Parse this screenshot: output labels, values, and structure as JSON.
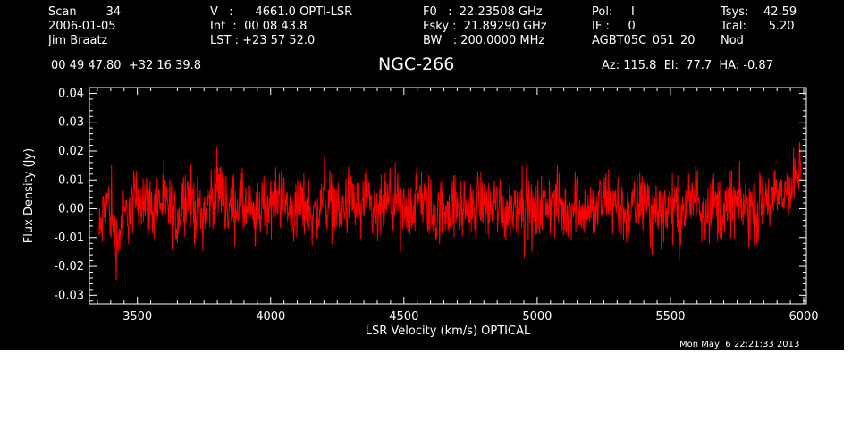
{
  "header": {
    "col1": [
      "Scan        34",
      "2006-01-05",
      "Jim Braatz"
    ],
    "col2": [
      "V   :      4661.0 OPTI-LSR",
      "Int  :  00 08 43.8",
      "LST : +23 57 52.0"
    ],
    "col3": [
      "F0   :  22.23508 GHz",
      "Fsky :  21.89290 GHz",
      "BW   : 200.0000 MHz"
    ],
    "col4": [
      "Pol:     I",
      "IF :     0",
      "AGBT05C_051_20"
    ],
    "col5": [
      "Tsys:    42.59",
      "Tcal:      5.20",
      "Nod"
    ],
    "coords": "00 49 47.80  +32 16 39.8",
    "source": "NGC-266",
    "azel": "Az: 115.8  El:  77.7  HA: -0.87",
    "timestamp": "Mon May  6 22:21:33 2013"
  },
  "colors": {
    "background": "#000000",
    "axes": "#ffffff",
    "trace": "#ff0000"
  },
  "chart_data": {
    "type": "line",
    "xlabel": "LSR Velocity (km/s) OPTICAL",
    "ylabel": "Flux Density (Jy)",
    "xlim": [
      3320,
      6010
    ],
    "ylim": [
      -0.033,
      0.042
    ],
    "x_ticks": [
      3500,
      4000,
      4500,
      5000,
      5500,
      6000
    ],
    "x_tick_labels": [
      "3500",
      "4000",
      "4500",
      "5000",
      "5500",
      "6000"
    ],
    "y_ticks": [
      -0.03,
      -0.02,
      -0.01,
      0.0,
      0.01,
      0.02,
      0.03,
      0.04
    ],
    "y_tick_labels": [
      "-0.03",
      "-0.02",
      "-0.01",
      "0.00",
      "0.01",
      "0.02",
      "0.03",
      "0.04"
    ],
    "grid": false,
    "series": [
      {
        "x_range": [
          3355,
          5990
        ],
        "values": [
          -0.01,
          0.004,
          -0.012,
          -0.003,
          0.002,
          0.005,
          -0.001,
          0.003,
          0.0,
          -0.004,
          0.006,
          0.001,
          -0.002,
          0.004,
          0.008,
          -0.001,
          0.002,
          0.0,
          -0.005,
          0.003,
          0.001,
          0.005,
          -0.002,
          0.0,
          0.002,
          -0.003,
          0.004,
          0.001,
          -0.001,
          0.003,
          0.0,
          0.002,
          -0.004,
          0.001,
          0.003,
          -0.002,
          0.0,
          0.004,
          0.001,
          -0.003,
          0.002,
          0.0,
          0.001,
          -0.002,
          0.003,
          0.0,
          0.002,
          -0.001,
          0.001,
          0.004,
          -0.003,
          0.0,
          0.002,
          0.001,
          -0.002,
          0.003,
          0.0,
          -0.001,
          0.002,
          0.004,
          0.0,
          -0.002,
          0.001,
          0.003,
          -0.001,
          0.0,
          0.002,
          -0.003,
          0.001,
          0.005,
          0.0,
          0.002,
          -0.002,
          0.003,
          0.001,
          0.0,
          -0.001,
          0.004,
          0.002,
          0.006,
          0.008,
          0.014
        ],
        "noise_amplitude": 0.007
      }
    ]
  }
}
